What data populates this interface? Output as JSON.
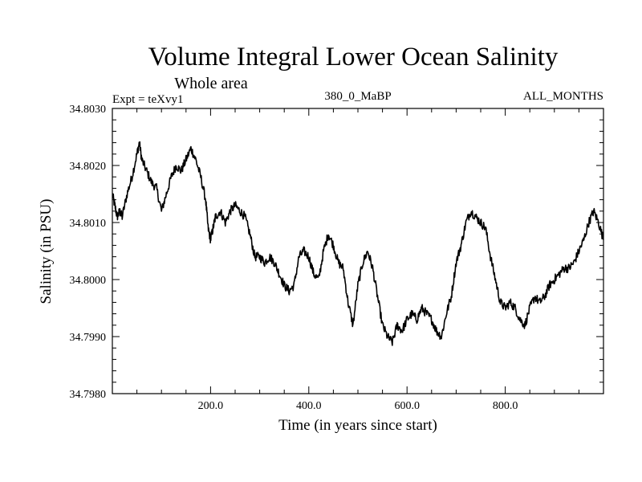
{
  "chart_data": {
    "type": "line",
    "title": "Volume Integral Lower Ocean Salinity",
    "subtitle": "Whole area",
    "experiment_label": "Expt = teXvy1",
    "run_label": "380_0_MaBP",
    "months_label": "ALL_MONTHS",
    "xlabel": "Time (in years since start)",
    "ylabel": "Salinity (in PSU)",
    "xlim": [
      0,
      1000
    ],
    "ylim": [
      34.798,
      34.803
    ],
    "x_ticks": [
      200,
      400,
      600,
      800
    ],
    "x_tick_labels": [
      "200.0",
      "400.0",
      "600.0",
      "800.0"
    ],
    "y_ticks": [
      34.798,
      34.799,
      34.8,
      34.801,
      34.802,
      34.803
    ],
    "y_tick_labels": [
      "34.7980",
      "34.7990",
      "34.8000",
      "34.8010",
      "34.8020",
      "34.8030"
    ],
    "grid": false,
    "series": [
      {
        "name": "Lower ocean salinity",
        "x": [
          0,
          5,
          10,
          15,
          20,
          30,
          40,
          50,
          55,
          60,
          70,
          80,
          90,
          100,
          110,
          120,
          130,
          140,
          150,
          160,
          170,
          180,
          190,
          195,
          200,
          205,
          210,
          220,
          230,
          240,
          250,
          260,
          270,
          280,
          290,
          300,
          310,
          320,
          330,
          340,
          350,
          360,
          370,
          380,
          390,
          400,
          410,
          420,
          430,
          440,
          450,
          460,
          470,
          480,
          490,
          500,
          510,
          520,
          530,
          540,
          550,
          560,
          570,
          580,
          590,
          600,
          610,
          620,
          630,
          640,
          650,
          660,
          670,
          680,
          690,
          700,
          710,
          720,
          730,
          740,
          750,
          760,
          770,
          780,
          790,
          800,
          810,
          820,
          830,
          840,
          850,
          860,
          870,
          880,
          890,
          900,
          910,
          920,
          930,
          940,
          950,
          960,
          970,
          980,
          990,
          1000
        ],
        "values": [
          34.8015,
          34.8013,
          34.8011,
          34.8012,
          34.8011,
          34.8015,
          34.8018,
          34.8022,
          34.8024,
          34.8021,
          34.8019,
          34.8017,
          34.8016,
          34.8012,
          34.8015,
          34.8018,
          34.802,
          34.8019,
          34.8021,
          34.8023,
          34.8021,
          34.8018,
          34.8014,
          34.8009,
          34.8007,
          34.8009,
          34.8011,
          34.8012,
          34.801,
          34.8012,
          34.8013,
          34.8012,
          34.8011,
          34.8008,
          34.8004,
          34.8004,
          34.8003,
          34.8004,
          34.8003,
          34.8001,
          34.7999,
          34.7998,
          34.7999,
          34.8004,
          34.8005,
          34.8004,
          34.8001,
          34.8,
          34.8005,
          34.8008,
          34.8006,
          34.8003,
          34.8002,
          34.7996,
          34.7992,
          34.7999,
          34.8003,
          34.8005,
          34.8002,
          34.7997,
          34.7992,
          34.799,
          34.7989,
          34.7992,
          34.7991,
          34.7993,
          34.7994,
          34.7993,
          34.7995,
          34.7994,
          34.7993,
          34.7991,
          34.799,
          34.7994,
          34.7997,
          34.8003,
          34.8006,
          34.801,
          34.8012,
          34.8011,
          34.801,
          34.8009,
          34.8004,
          34.8,
          34.7996,
          34.7995,
          34.7996,
          34.7995,
          34.7993,
          34.7992,
          34.7995,
          34.7997,
          34.7996,
          34.7997,
          34.7999,
          34.8,
          34.8001,
          34.8002,
          34.8002,
          34.8003,
          34.8005,
          34.8007,
          34.801,
          34.8012,
          34.801,
          34.8007
        ]
      }
    ]
  }
}
